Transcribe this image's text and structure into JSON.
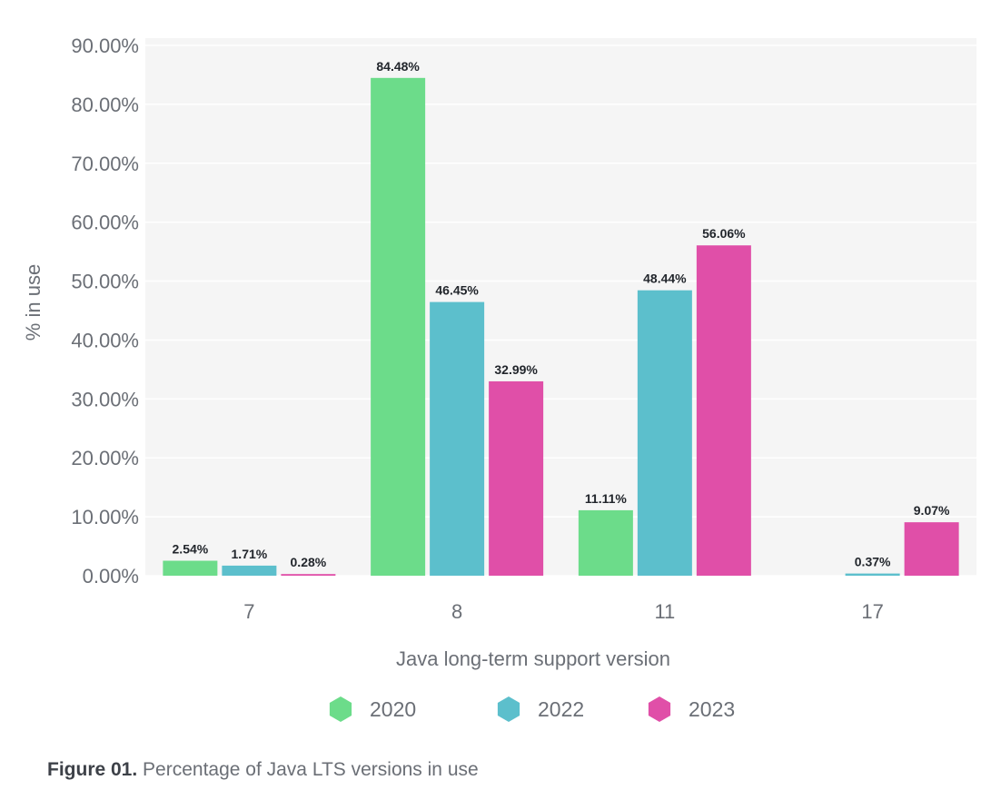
{
  "chart_data": {
    "type": "bar",
    "xlabel": "Java long-term support version",
    "ylabel": "% in use",
    "categories": [
      "7",
      "8",
      "11",
      "17"
    ],
    "ylim": [
      0,
      90
    ],
    "yticks": [
      0,
      10,
      20,
      30,
      40,
      50,
      60,
      70,
      80,
      90
    ],
    "ytick_labels": [
      "0.00%",
      "10.00%",
      "20.00%",
      "30.00%",
      "40.00%",
      "50.00%",
      "60.00%",
      "70.00%",
      "80.00%",
      "90.00%"
    ],
    "grid": true,
    "legend_position": "bottom-center",
    "series": [
      {
        "name": "2020",
        "color": "#6cdc8a",
        "values": [
          2.54,
          84.48,
          11.11,
          null
        ],
        "labels": [
          "2.54%",
          "84.48%",
          "11.11%",
          ""
        ]
      },
      {
        "name": "2022",
        "color": "#5cbfcc",
        "values": [
          1.71,
          46.45,
          48.44,
          0.37
        ],
        "labels": [
          "1.71%",
          "46.45%",
          "48.44%",
          "0.37%"
        ]
      },
      {
        "name": "2023",
        "color": "#e04fa8",
        "values": [
          0.28,
          32.99,
          56.06,
          9.07
        ],
        "labels": [
          "0.28%",
          "32.99%",
          "56.06%",
          "9.07%"
        ]
      }
    ]
  },
  "caption": {
    "prefix": "Figure 01.",
    "text": " Percentage of Java LTS versions in use"
  }
}
